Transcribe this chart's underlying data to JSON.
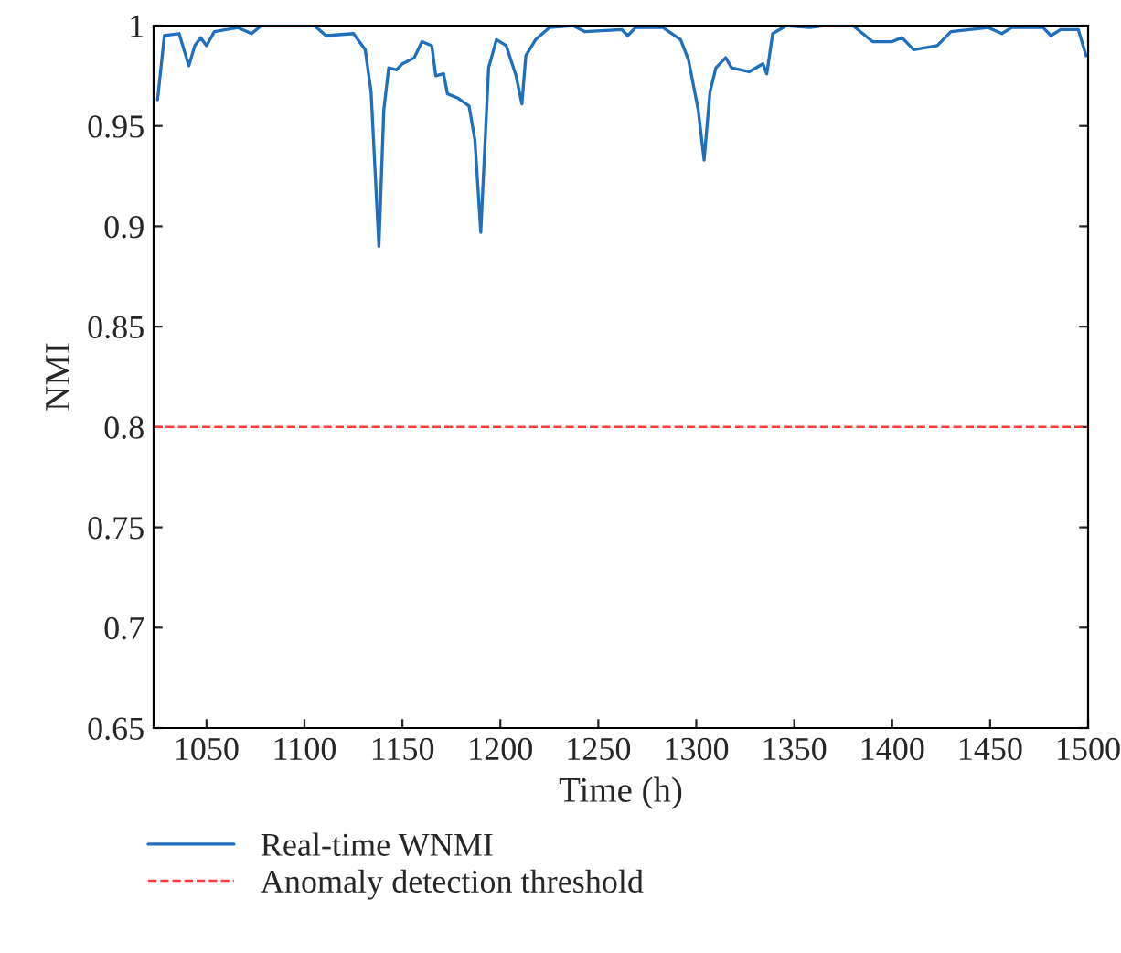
{
  "chart_data": {
    "type": "line",
    "xlabel": "Time (h)",
    "ylabel": "NMI",
    "xlim": [
      1023,
      1500
    ],
    "xticks": [
      1050,
      1100,
      1150,
      1200,
      1250,
      1300,
      1350,
      1400,
      1450,
      1500
    ],
    "ylim": [
      0.65,
      1
    ],
    "yticks": [
      0.65,
      0.7,
      0.75,
      0.8,
      0.85,
      0.9,
      0.95,
      {
        "value": 1,
        "label": "1"
      }
    ],
    "grid": false,
    "legend": "bottom left",
    "line_style": "solid",
    "marker": "none",
    "series": [
      {
        "name": "Real-time WNMI",
        "color": "#1f6fbd",
        "x": [
          1025,
          1028.5,
          1036,
          1041,
          1044,
          1047,
          1050,
          1054,
          1066,
          1073,
          1078,
          1097,
          1105,
          1111,
          1125,
          1131,
          1134,
          1138,
          1140.5,
          1143,
          1147,
          1150,
          1156,
          1160,
          1165,
          1167,
          1171,
          1173,
          1178,
          1184,
          1187,
          1190,
          1194,
          1198,
          1203,
          1208,
          1211,
          1213,
          1218,
          1225,
          1237,
          1243,
          1262,
          1265,
          1269,
          1283,
          1292,
          1296,
          1301,
          1304,
          1307,
          1310,
          1315,
          1318,
          1327,
          1334,
          1336,
          1339,
          1346,
          1358,
          1365,
          1380,
          1390,
          1400,
          1405,
          1411,
          1423,
          1430,
          1449,
          1456,
          1461,
          1477,
          1481,
          1486,
          1495,
          1499
        ],
        "values": [
          0.963,
          0.995,
          0.996,
          0.98,
          0.99,
          0.994,
          0.99,
          0.997,
          0.999,
          0.996,
          1.0,
          1.0,
          1.0,
          0.995,
          0.996,
          0.988,
          0.967,
          0.89,
          0.958,
          0.979,
          0.978,
          0.981,
          0.984,
          0.992,
          0.99,
          0.975,
          0.976,
          0.966,
          0.964,
          0.96,
          0.943,
          0.897,
          0.979,
          0.993,
          0.99,
          0.975,
          0.961,
          0.985,
          0.993,
          0.999,
          1.0,
          0.997,
          0.998,
          0.995,
          0.999,
          0.999,
          0.993,
          0.983,
          0.958,
          0.933,
          0.967,
          0.979,
          0.984,
          0.979,
          0.977,
          0.981,
          0.976,
          0.996,
          1.0,
          0.999,
          1.0,
          1.0,
          0.992,
          0.992,
          0.994,
          0.988,
          0.99,
          0.997,
          0.999,
          0.996,
          0.999,
          0.999,
          0.995,
          0.998,
          0.998,
          0.985
        ]
      }
    ],
    "ref_lines": [
      {
        "axis": "y",
        "value": 0.8,
        "label": "Anomaly detection threshold",
        "color": "#ff3b3b",
        "line_style": "dashed"
      }
    ]
  }
}
